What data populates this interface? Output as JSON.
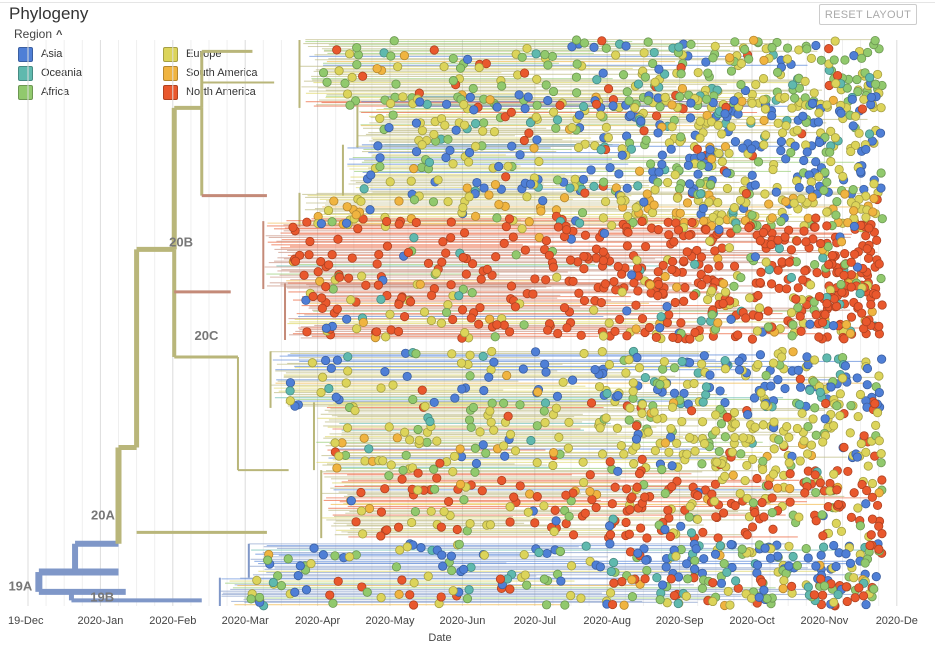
{
  "panel": {
    "title": "Phylogeny",
    "reset_label": "RESET LAYOUT",
    "legend_title": "Region",
    "legend_caret": "^"
  },
  "legend": [
    {
      "label": "Asia",
      "color": "#4f7fd6"
    },
    {
      "label": "Oceania",
      "color": "#5fb9ae"
    },
    {
      "label": "Africa",
      "color": "#91c96d"
    },
    {
      "label": "Europe",
      "color": "#dcd45a"
    },
    {
      "label": "South America",
      "color": "#f0b440"
    },
    {
      "label": "North America",
      "color": "#e9582d"
    }
  ],
  "chart_data": {
    "type": "scatter",
    "title": "Phylogeny",
    "xlabel": "Date",
    "ylabel": "",
    "x_ticks": [
      "19-Dec",
      "2020-Jan",
      "2020-Feb",
      "2020-Mar",
      "2020-Apr",
      "2020-May",
      "2020-Jun",
      "2020-Jul",
      "2020-Aug",
      "2020-Sep",
      "2020-Oct",
      "2020-Nov",
      "2020-De"
    ],
    "x_range": [
      "2019-12-01",
      "2020-12-01"
    ],
    "color_by": "Region",
    "clade_labels": [
      "20B",
      "20C",
      "20A",
      "19A",
      "19B"
    ],
    "clade_colors": {
      "19A": "#7f97c8",
      "19B": "#7f97c8",
      "20A": "#b9b67a",
      "20B": "#b9b67a",
      "20C": "#c48a78"
    },
    "blocks": [
      {
        "clade": "20B",
        "center": 0.06,
        "half": 0.06,
        "start": 4.0,
        "mix": [
          0.06,
          0.12,
          0.42,
          0.25,
          0.05,
          0.1
        ],
        "dense": 60
      },
      {
        "clade": "20B",
        "center": 0.145,
        "half": 0.045,
        "start": 4.8,
        "mix": [
          0.3,
          0.1,
          0.15,
          0.35,
          0.05,
          0.05
        ],
        "dense": 55
      },
      {
        "clade": "20B",
        "center": 0.23,
        "half": 0.045,
        "start": 4.6,
        "mix": [
          0.4,
          0.05,
          0.15,
          0.3,
          0.05,
          0.05
        ],
        "dense": 50
      },
      {
        "clade": "20B",
        "center": 0.3,
        "half": 0.03,
        "start": 4.0,
        "mix": [
          0.05,
          0.05,
          0.1,
          0.45,
          0.3,
          0.05
        ],
        "dense": 40
      },
      {
        "clade": "20C",
        "center": 0.38,
        "half": 0.06,
        "start": 3.5,
        "mix": [
          0.03,
          0.03,
          0.06,
          0.06,
          0.04,
          0.78
        ],
        "dense": 75
      },
      {
        "clade": "20C",
        "center": 0.48,
        "half": 0.05,
        "start": 3.8,
        "mix": [
          0.04,
          0.04,
          0.1,
          0.18,
          0.04,
          0.6
        ],
        "dense": 70
      },
      {
        "clade": "20A",
        "center": 0.6,
        "half": 0.05,
        "start": 3.6,
        "mix": [
          0.45,
          0.1,
          0.1,
          0.3,
          0.02,
          0.03
        ],
        "dense": 50
      },
      {
        "clade": "20A",
        "center": 0.7,
        "half": 0.06,
        "start": 4.2,
        "mix": [
          0.06,
          0.04,
          0.2,
          0.55,
          0.05,
          0.1
        ],
        "dense": 65
      },
      {
        "clade": "20A",
        "center": 0.82,
        "half": 0.06,
        "start": 4.3,
        "mix": [
          0.05,
          0.03,
          0.1,
          0.2,
          0.05,
          0.57
        ],
        "dense": 60
      },
      {
        "clade": "19A",
        "center": 0.92,
        "half": 0.03,
        "start": 3.3,
        "mix": [
          0.5,
          0.08,
          0.2,
          0.15,
          0.02,
          0.05
        ],
        "dense": 40
      },
      {
        "clade": "19B",
        "center": 0.975,
        "half": 0.025,
        "start": 2.9,
        "mix": [
          0.15,
          0.1,
          0.25,
          0.15,
          0.05,
          0.3
        ],
        "dense": 35
      }
    ]
  }
}
